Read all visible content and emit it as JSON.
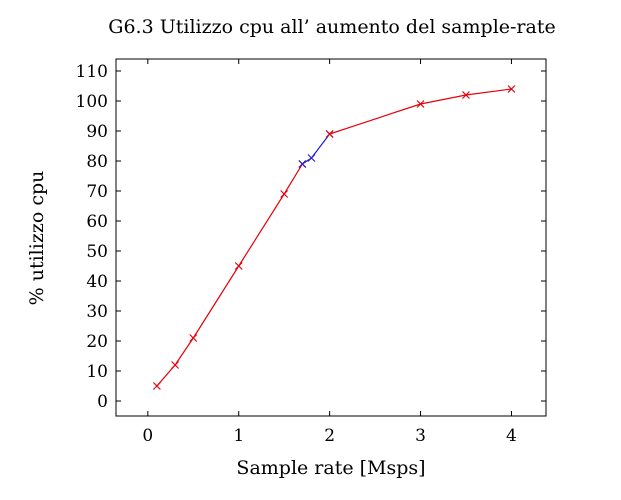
{
  "chart_data": {
    "type": "line",
    "title": "G6.3 Utilizzo cpu all’ aumento del sample-rate",
    "xlabel": "Sample rate [Msps]",
    "ylabel": "% utilizzo cpu",
    "xlim": [
      -0.35,
      4.38
    ],
    "ylim": [
      -5,
      114
    ],
    "xticks": [
      0,
      1,
      2,
      3,
      4
    ],
    "yticks": [
      0,
      10,
      20,
      30,
      40,
      50,
      60,
      70,
      80,
      90,
      100,
      110
    ],
    "grid": false,
    "marker": "x",
    "series": [
      {
        "color": "#e8000b",
        "x": [
          0.1,
          0.3,
          0.5,
          1.0,
          1.5,
          1.7
        ],
        "y": [
          5,
          12,
          21,
          45,
          69,
          79
        ]
      },
      {
        "color": "#1f1fcf",
        "x": [
          1.7,
          1.8,
          2.0
        ],
        "y": [
          79,
          81,
          89
        ]
      },
      {
        "color": "#e8000b",
        "x": [
          2.0,
          3.0,
          3.5,
          4.0
        ],
        "y": [
          89,
          99,
          102,
          104
        ]
      }
    ]
  }
}
